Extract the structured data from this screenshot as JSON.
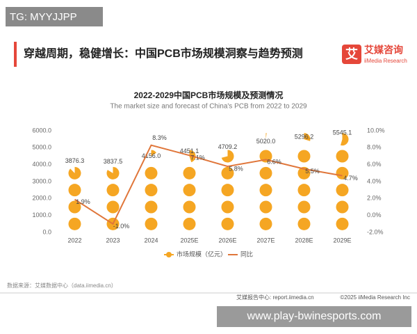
{
  "watermark_top": "TG: MYYJJPP",
  "header": "穿越周期，稳健增长：中国PCB市场规模洞察与趋势预测",
  "logo": {
    "name": "艾媒咨询",
    "sub": "iiMedia Research"
  },
  "chart_data": {
    "type": "pictogram-bar-line",
    "title": "2022-2029中国PCB市场规模及预测情况",
    "subtitle": "The market size and forecast of China's PCB from 2022 to 2029",
    "categories": [
      "2022",
      "2023",
      "2024",
      "2025E",
      "2026E",
      "2027E",
      "2028E",
      "2029E"
    ],
    "series": [
      {
        "name": "市场规模（亿元）",
        "color": "#f5a623",
        "values": [
          3876.3,
          3837.5,
          4156.0,
          4451.1,
          4709.2,
          5020.0,
          5296.2,
          5545.1
        ],
        "value_labels": [
          "3876.3",
          "3837.5",
          "4156.0",
          "4451.1",
          "4709.2",
          "5020.0",
          "5296.2",
          "5545.1"
        ]
      },
      {
        "name": "同比",
        "color": "#e0763a",
        "axis": "y2",
        "values": [
          1.9,
          -1.0,
          8.3,
          7.1,
          5.8,
          6.6,
          5.5,
          4.7
        ],
        "value_labels": [
          "1.9%",
          "-1.0%",
          "8.3%",
          "7.1%",
          "5.8%",
          "6.6%",
          "5.5%",
          "4.7%"
        ]
      }
    ],
    "ylim": [
      0,
      6000
    ],
    "yticks": [
      {
        "value": 0,
        "label": "0.0"
      },
      {
        "value": 1000,
        "label": "1000.0"
      },
      {
        "value": 2000,
        "label": "2000.0"
      },
      {
        "value": 3000,
        "label": "3000.0"
      },
      {
        "value": 4000,
        "label": "4000.0"
      },
      {
        "value": 5000,
        "label": "5000.0"
      },
      {
        "value": 6000,
        "label": "6000.0"
      }
    ],
    "y2lim": [
      -2,
      10
    ],
    "y2ticks": [
      {
        "value": -2,
        "label": "-2.0%"
      },
      {
        "value": 0,
        "label": "0.0%"
      },
      {
        "value": 2,
        "label": "2.0%"
      },
      {
        "value": 4,
        "label": "4.0%"
      },
      {
        "value": 6,
        "label": "6.0%"
      },
      {
        "value": 8,
        "label": "8.0%"
      },
      {
        "value": 10,
        "label": "10.0%"
      }
    ],
    "source": "数据来源：艾媒数据中心（data.iimedia.cn）"
  },
  "footer": {
    "left": "艾媒报告中心: report.iimedia.cn",
    "right": "©2025  iiMedia Research  Inc"
  },
  "watermark_bottom": "www.play-bwinesports.com"
}
